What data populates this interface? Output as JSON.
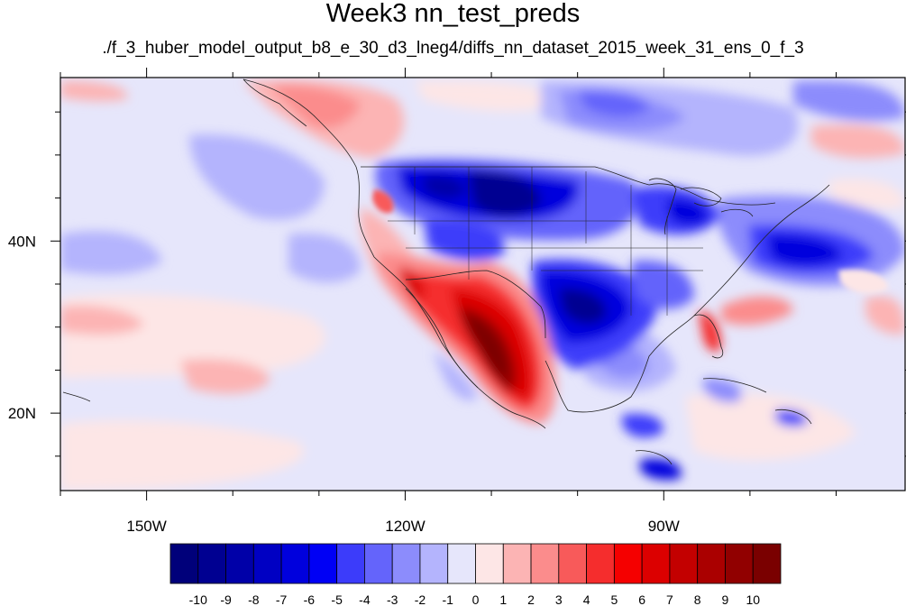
{
  "title": "Week3 nn_test_preds",
  "subtitle": "./f_3_huber_model_output_b8_e_30_d3_lneg4/diffs_nn_dataset_2015_week_31_ens_0_f_3",
  "map": {
    "lon_range": [
      -160,
      -62
    ],
    "lat_range": [
      11,
      59
    ],
    "lon_ticks": [
      {
        "value": -150,
        "label": "150W"
      },
      {
        "value": -120,
        "label": "120W"
      },
      {
        "value": -90,
        "label": "90W"
      }
    ],
    "lat_ticks": [
      {
        "value": 40,
        "label": "40N"
      },
      {
        "value": 20,
        "label": "20N"
      }
    ]
  },
  "colorbar": {
    "levels": [
      "-10",
      "-9",
      "-8",
      "-7",
      "-6",
      "-5",
      "-4",
      "-3",
      "-2",
      "-1",
      "0",
      "1",
      "2",
      "3",
      "4",
      "5",
      "6",
      "7",
      "8",
      "9",
      "10"
    ],
    "colors": [
      "#00007a",
      "#000091",
      "#0000a8",
      "#0000c3",
      "#0000dd",
      "#0000f5",
      "#3c3cfa",
      "#6464fb",
      "#8c8cfc",
      "#b4b4fd",
      "#e6e6fb",
      "#fde6e6",
      "#fcb4b4",
      "#fb8c8c",
      "#f85a5a",
      "#f52d2d",
      "#f50000",
      "#dc0000",
      "#c30000",
      "#aa0000",
      "#910000",
      "#7a0000"
    ]
  },
  "chart_data": {
    "type": "heatmap",
    "title": "Week3 nn_test_preds",
    "subtitle": "./f_3_huber_model_output_b8_e_30_d3_lneg4/diffs_nn_dataset_2015_week_31_ens_0_f_3",
    "x_axis": {
      "ticks": [
        "150W",
        "120W",
        "90W"
      ]
    },
    "y_axis": {
      "ticks": [
        "40N",
        "20N"
      ]
    },
    "colorbar_levels": [
      -10,
      -9,
      -8,
      -7,
      -6,
      -5,
      -4,
      -3,
      -2,
      -1,
      0,
      1,
      2,
      3,
      4,
      5,
      6,
      7,
      8,
      9,
      10
    ]
  }
}
